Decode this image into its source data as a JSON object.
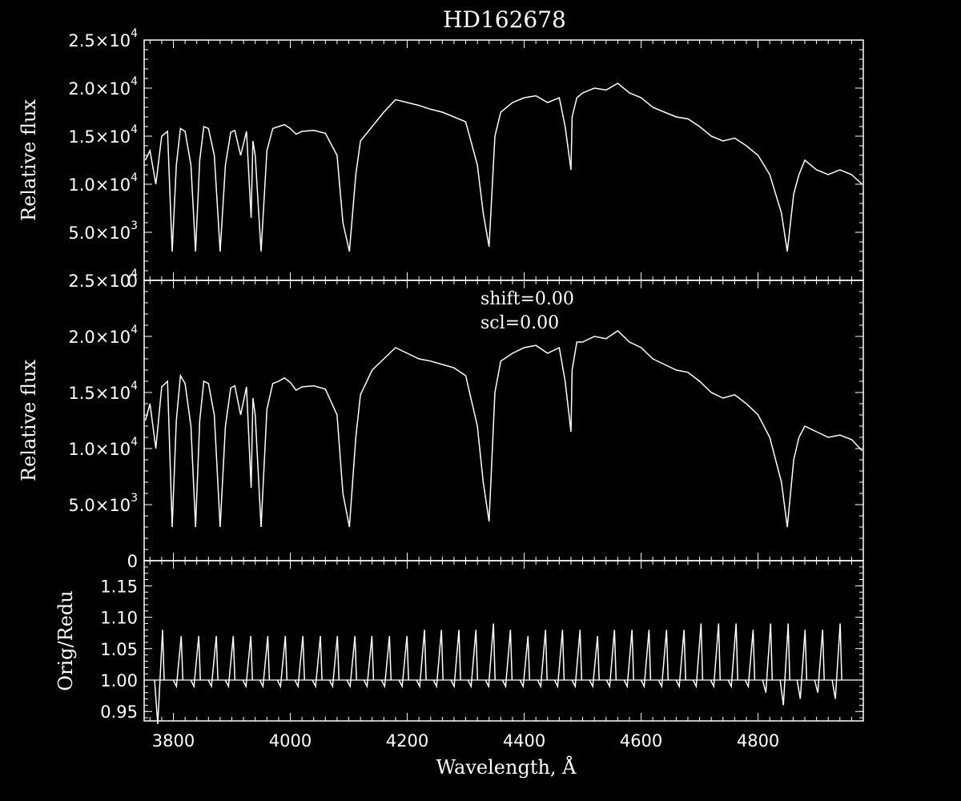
{
  "title": "HD162678",
  "xlabel": "Wavelength, Å",
  "xticks": [
    "3800",
    "4000",
    "4200",
    "4400",
    "4600",
    "4800"
  ],
  "chart_data": [
    {
      "type": "line",
      "panel": "top",
      "ylabel": "Relative flux",
      "xlim": [
        3750,
        4980
      ],
      "ylim": [
        0,
        25000
      ],
      "yticks": [
        {
          "value": 0,
          "mant": "0",
          "exp": ""
        },
        {
          "value": 5000,
          "mant": "5.0×10",
          "exp": "3"
        },
        {
          "value": 10000,
          "mant": "1.0×10",
          "exp": "4"
        },
        {
          "value": 15000,
          "mant": "1.5×10",
          "exp": "4"
        },
        {
          "value": 20000,
          "mant": "2.0×10",
          "exp": "4"
        },
        {
          "value": 25000,
          "mant": "2.5×10",
          "exp": "4"
        }
      ],
      "series": [
        {
          "x": [
            3752,
            3760,
            3770,
            3780,
            3790,
            3798,
            3805,
            3812,
            3820,
            3830,
            3838,
            3845,
            3852,
            3860,
            3870,
            3880,
            3889,
            3898,
            3905,
            3915,
            3925,
            3933,
            3936,
            3940,
            3950,
            3960,
            3970,
            3980,
            3990,
            4000,
            4010,
            4020,
            4040,
            4060,
            4080,
            4090,
            4101,
            4112,
            4120,
            4140,
            4160,
            4180,
            4200,
            4220,
            4240,
            4260,
            4280,
            4300,
            4320,
            4330,
            4340,
            4350,
            4360,
            4380,
            4400,
            4420,
            4440,
            4460,
            4470,
            4480,
            4482,
            4490,
            4500,
            4520,
            4540,
            4560,
            4580,
            4600,
            4620,
            4640,
            4660,
            4680,
            4700,
            4720,
            4740,
            4760,
            4780,
            4800,
            4820,
            4840,
            4850,
            4861,
            4870,
            4880,
            4900,
            4920,
            4940,
            4960,
            4978
          ],
          "y": [
            12500,
            13500,
            10000,
            15000,
            15500,
            3000,
            12000,
            15800,
            15500,
            12000,
            3000,
            12500,
            16000,
            15800,
            13000,
            3000,
            12000,
            15400,
            15600,
            13000,
            15500,
            6500,
            14500,
            13000,
            3000,
            13500,
            15800,
            16000,
            16200,
            15800,
            15200,
            15500,
            15600,
            15300,
            13000,
            6000,
            3000,
            11000,
            14500,
            16000,
            17500,
            18800,
            18500,
            18200,
            17800,
            17500,
            17000,
            16500,
            12000,
            7000,
            3500,
            15000,
            17500,
            18500,
            19000,
            19200,
            18500,
            19000,
            16000,
            11500,
            17000,
            19000,
            19500,
            20000,
            19800,
            20500,
            19500,
            19000,
            18000,
            17500,
            17000,
            16800,
            16000,
            15000,
            14500,
            14800,
            14000,
            13000,
            11000,
            7000,
            3000,
            9000,
            11000,
            12500,
            11500,
            11000,
            11500,
            11000,
            10000
          ]
        }
      ]
    },
    {
      "type": "line",
      "panel": "middle",
      "ylabel": "Relative flux",
      "annotations": [
        "shift=0.00",
        "scl=0.00"
      ],
      "xlim": [
        3750,
        4980
      ],
      "ylim": [
        0,
        25000
      ],
      "yticks": [
        {
          "value": 0,
          "mant": "0",
          "exp": ""
        },
        {
          "value": 5000,
          "mant": "5.0×10",
          "exp": "3"
        },
        {
          "value": 10000,
          "mant": "1.0×10",
          "exp": "4"
        },
        {
          "value": 15000,
          "mant": "1.5×10",
          "exp": "4"
        },
        {
          "value": 20000,
          "mant": "2.0×10",
          "exp": "4"
        },
        {
          "value": 25000,
          "mant": "2.5×10",
          "exp": "4"
        }
      ],
      "series": [
        {
          "x": [
            3752,
            3760,
            3770,
            3780,
            3790,
            3798,
            3805,
            3812,
            3820,
            3830,
            3838,
            3845,
            3852,
            3860,
            3870,
            3880,
            3889,
            3898,
            3905,
            3915,
            3925,
            3933,
            3936,
            3940,
            3950,
            3960,
            3970,
            3980,
            3990,
            4000,
            4010,
            4020,
            4040,
            4060,
            4080,
            4090,
            4101,
            4112,
            4120,
            4140,
            4160,
            4180,
            4200,
            4220,
            4240,
            4260,
            4280,
            4300,
            4320,
            4330,
            4340,
            4350,
            4360,
            4380,
            4400,
            4420,
            4440,
            4460,
            4470,
            4480,
            4482,
            4490,
            4500,
            4520,
            4540,
            4560,
            4580,
            4600,
            4620,
            4640,
            4660,
            4680,
            4700,
            4720,
            4740,
            4760,
            4780,
            4800,
            4820,
            4840,
            4850,
            4861,
            4870,
            4880,
            4900,
            4920,
            4940,
            4960,
            4978
          ],
          "y": [
            12500,
            14000,
            10000,
            15500,
            16000,
            3000,
            12500,
            16500,
            15800,
            12000,
            3000,
            12500,
            16000,
            15800,
            13000,
            3000,
            12000,
            15400,
            15600,
            13000,
            15500,
            6500,
            14500,
            13000,
            3000,
            13500,
            15800,
            16000,
            16300,
            15900,
            15200,
            15500,
            15600,
            15300,
            13000,
            6000,
            3000,
            11000,
            14800,
            17000,
            18000,
            19000,
            18500,
            18000,
            17800,
            17500,
            17200,
            16500,
            12000,
            7000,
            3500,
            15000,
            17800,
            18500,
            19000,
            19200,
            18500,
            19000,
            16000,
            11500,
            17000,
            19500,
            19500,
            20000,
            19800,
            20500,
            19500,
            19000,
            18000,
            17500,
            17000,
            16800,
            16000,
            15000,
            14500,
            14800,
            14000,
            13000,
            11000,
            7000,
            3000,
            9000,
            11000,
            12000,
            11500,
            11000,
            11200,
            10800,
            9800
          ]
        }
      ]
    },
    {
      "type": "line",
      "panel": "bottom",
      "ylabel": "Orig/Redu",
      "xlim": [
        3750,
        4980
      ],
      "ylim": [
        0.935,
        1.19
      ],
      "yticks": [
        {
          "value": 0.95,
          "mant": "0.95",
          "exp": ""
        },
        {
          "value": 1.0,
          "mant": "1.00",
          "exp": ""
        },
        {
          "value": 1.05,
          "mant": "1.05",
          "exp": ""
        },
        {
          "value": 1.1,
          "mant": "1.10",
          "exp": ""
        },
        {
          "value": 1.15,
          "mant": "1.15",
          "exp": ""
        }
      ],
      "baseline": 1.0,
      "spike_x": [
        3776,
        3808,
        3838,
        3868,
        3897,
        3927,
        3956,
        3986,
        4016,
        4046,
        4075,
        4105,
        4134,
        4164,
        4194,
        4224,
        4253,
        4283,
        4312,
        4342,
        4371,
        4401,
        4431,
        4460,
        4490,
        4520,
        4549,
        4579,
        4608,
        4638,
        4668,
        4697,
        4727,
        4757,
        4786,
        4816,
        4846,
        4875,
        4905,
        4935
      ],
      "spike_top": [
        1.08,
        1.07,
        1.07,
        1.07,
        1.07,
        1.07,
        1.07,
        1.07,
        1.07,
        1.07,
        1.07,
        1.07,
        1.07,
        1.07,
        1.07,
        1.08,
        1.08,
        1.08,
        1.08,
        1.09,
        1.08,
        1.07,
        1.08,
        1.08,
        1.08,
        1.07,
        1.08,
        1.08,
        1.08,
        1.08,
        1.08,
        1.09,
        1.09,
        1.09,
        1.08,
        1.09,
        1.09,
        1.08,
        1.08,
        1.09
      ],
      "spike_low": [
        0.93,
        0.99,
        0.99,
        0.99,
        0.99,
        0.99,
        0.99,
        0.99,
        0.99,
        0.99,
        0.99,
        0.99,
        0.99,
        0.99,
        0.99,
        0.99,
        0.99,
        0.99,
        0.99,
        0.99,
        0.99,
        0.99,
        0.99,
        0.99,
        0.99,
        0.99,
        0.99,
        0.99,
        0.99,
        0.99,
        0.99,
        0.99,
        0.99,
        0.99,
        0.99,
        0.98,
        0.96,
        0.97,
        0.98,
        0.97
      ]
    }
  ]
}
